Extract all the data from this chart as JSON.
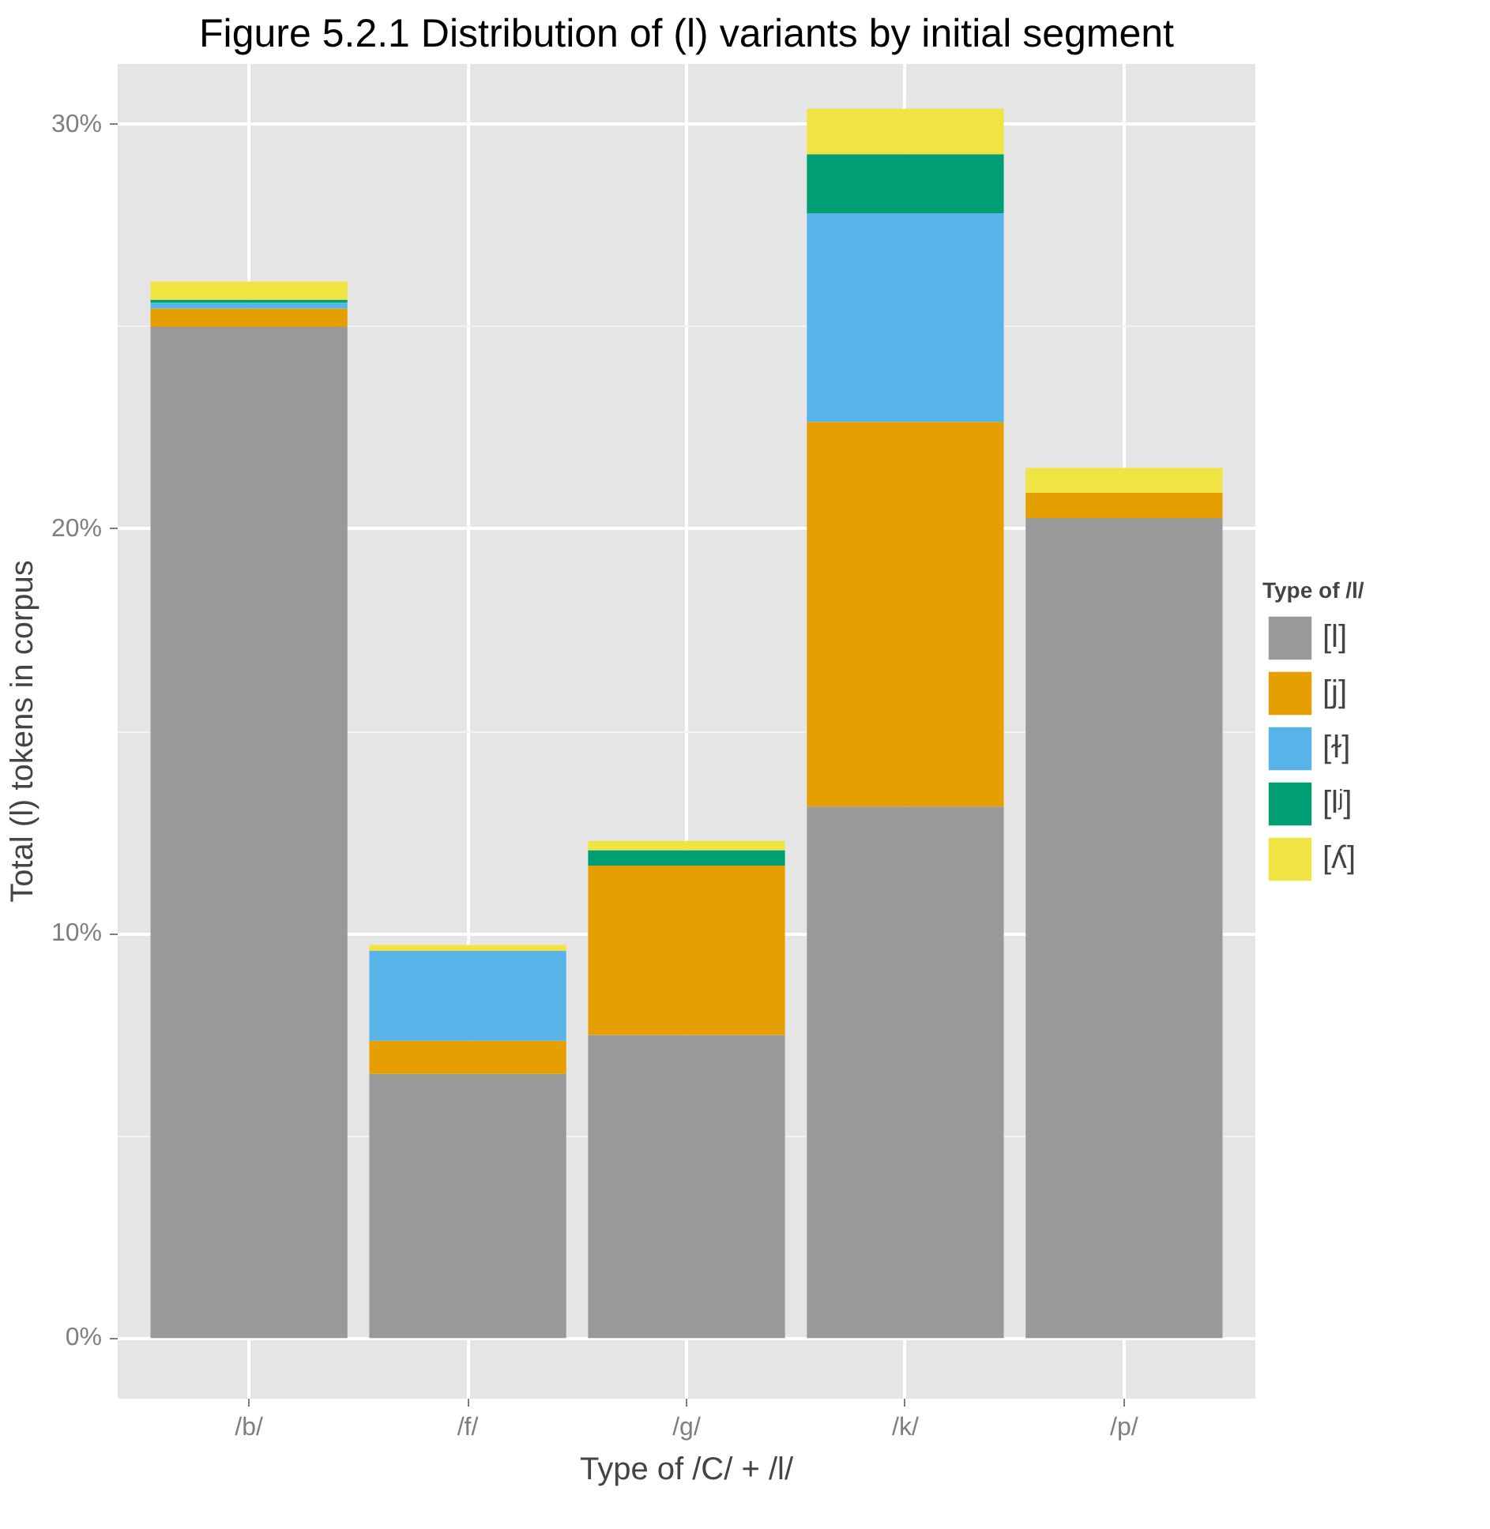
{
  "chart_data": {
    "type": "bar",
    "stacked": true,
    "title": "Figure 5.2.1 Distribution of (l) variants by initial segment",
    "xlabel": "Type of /C/ + /l/",
    "ylabel": "Total (l) tokens in corpus",
    "legend_title": "Type of /l/",
    "categories": [
      "/b/",
      "/f/",
      "/g/",
      "/k/",
      "/p/"
    ],
    "series": [
      {
        "name": "[l]",
        "color": "#999999",
        "values": [
          25.0,
          6.53,
          7.49,
          13.14,
          20.27
        ]
      },
      {
        "name": "[j]",
        "color": "#e69f00",
        "values": [
          0.45,
          0.82,
          4.19,
          9.51,
          0.63
        ]
      },
      {
        "name": "[ɫ]",
        "color": "#56b4e9",
        "values": [
          0.15,
          2.22,
          0,
          5.16,
          0
        ]
      },
      {
        "name": "[lʲ]",
        "color": "#009e73",
        "values": [
          0.07,
          0,
          0.38,
          1.46,
          0
        ]
      },
      {
        "name": "[ʎ]",
        "color": "#f0e442",
        "values": [
          0.45,
          0.15,
          0.23,
          1.12,
          0.61
        ]
      }
    ],
    "ylim": [
      -1.5,
      31.5
    ],
    "yticks": [
      {
        "value": 0,
        "label": "0%"
      },
      {
        "value": 10,
        "label": "10%"
      },
      {
        "value": 20,
        "label": "20%"
      },
      {
        "value": 30,
        "label": "30%"
      }
    ],
    "grid": true,
    "legend": "right"
  }
}
